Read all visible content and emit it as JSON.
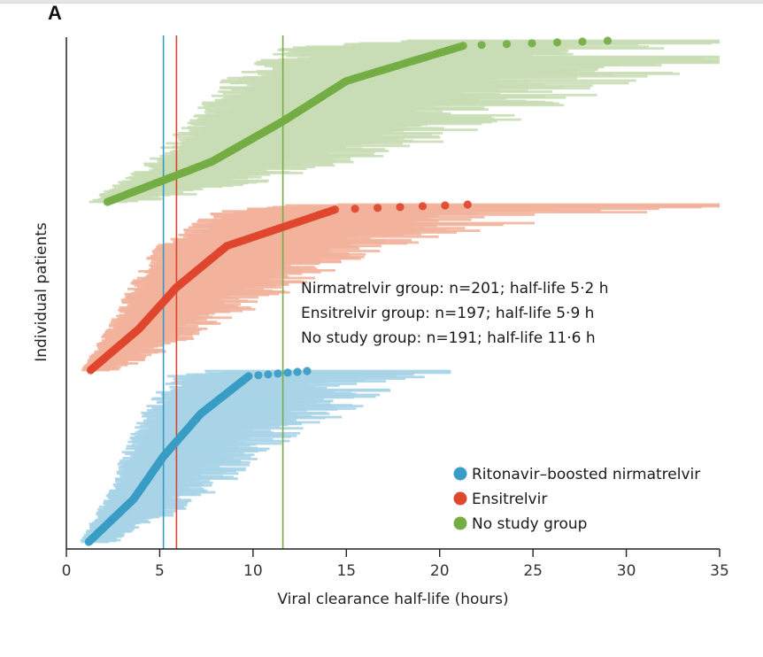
{
  "panel_label": "A",
  "chart_data": {
    "type": "scatter",
    "title": "",
    "xlabel": "Viral clearance half-life (hours)",
    "ylabel": "Individual patients",
    "xlim": [
      0,
      35
    ],
    "xticks": [
      0,
      5,
      10,
      15,
      20,
      25,
      30,
      35
    ],
    "grid": false,
    "legend_position": "bottom-right",
    "annotations": [
      "Nirmatrelvir group: n=201; half-life 5·2 h",
      "Ensitrelvir group: n=197; half-life 5·9 h",
      "No study group: n=191; half-life 11·6 h"
    ],
    "reference_lines": [
      {
        "name": "Ritonavir-boosted nirmatrelvir",
        "x": 5.2,
        "color": "#3a9cc4"
      },
      {
        "name": "Ensitrelvir",
        "x": 5.9,
        "color": "#d9452f"
      },
      {
        "name": "No study group",
        "x": 11.6,
        "color": "#74ad44"
      }
    ],
    "series": [
      {
        "name": "Ritonavir-boosted nirmatrelvir",
        "n": 201,
        "median_half_life": 5.2,
        "color": "#3a9cc4",
        "ci_color": "#a9d4e8",
        "x_min": 1.2,
        "x_q25": 3.6,
        "x_q50": 5.2,
        "x_q75": 7.2,
        "x_max": 12.9,
        "ci_max": 20.6,
        "stack_order": 1
      },
      {
        "name": "Ensitrelvir",
        "n": 197,
        "median_half_life": 5.9,
        "color": "#e0472f",
        "ci_color": "#f2b39c",
        "x_min": 1.3,
        "x_q25": 3.9,
        "x_q50": 5.9,
        "x_q75": 8.6,
        "x_max": 21.5,
        "ci_max": 35.0,
        "stack_order": 2
      },
      {
        "name": "No study group",
        "n": 191,
        "median_half_life": 11.6,
        "color": "#74ad44",
        "ci_color": "#c9ddb5",
        "x_min": 2.2,
        "x_q25": 7.8,
        "x_q50": 11.6,
        "x_q75": 15.0,
        "x_max": 29.0,
        "ci_max": 35.0,
        "stack_order": 3
      }
    ]
  },
  "legend": [
    {
      "label": "Ritonavir–boosted nirmatrelvir",
      "color": "#3a9cc4"
    },
    {
      "label": "Ensitrelvir",
      "color": "#e0472f"
    },
    {
      "label": "No study group",
      "color": "#74ad44"
    }
  ]
}
